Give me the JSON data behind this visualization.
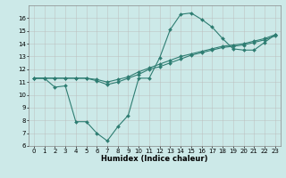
{
  "xlabel": "Humidex (Indice chaleur)",
  "background_color": "#cce9e8",
  "grid_color": "#bbbbbb",
  "line_color": "#2e7d72",
  "xlim": [
    -0.5,
    23.5
  ],
  "ylim": [
    6,
    17
  ],
  "xticks": [
    0,
    1,
    2,
    3,
    4,
    5,
    6,
    7,
    8,
    9,
    10,
    11,
    12,
    13,
    14,
    15,
    16,
    17,
    18,
    19,
    20,
    21,
    22,
    23
  ],
  "yticks": [
    6,
    7,
    8,
    9,
    10,
    11,
    12,
    13,
    14,
    15,
    16
  ],
  "line1_x": [
    0,
    1,
    2,
    3,
    4,
    5,
    6,
    7,
    8,
    9,
    10,
    11,
    12,
    13,
    14,
    15,
    16,
    17,
    18,
    19,
    20,
    21,
    22,
    23
  ],
  "line1_y": [
    11.3,
    11.3,
    10.6,
    10.7,
    7.9,
    7.9,
    7.0,
    6.4,
    7.5,
    8.4,
    11.3,
    11.3,
    12.9,
    15.1,
    16.3,
    16.4,
    15.9,
    15.3,
    14.4,
    13.6,
    13.5,
    13.5,
    14.1,
    14.7
  ],
  "line2_x": [
    0,
    1,
    2,
    3,
    4,
    5,
    6,
    7,
    8,
    9,
    10,
    11,
    12,
    13,
    14,
    15,
    16,
    17,
    18,
    19,
    20,
    21,
    22,
    23
  ],
  "line2_y": [
    11.3,
    11.3,
    11.3,
    11.3,
    11.3,
    11.3,
    11.1,
    10.8,
    11.0,
    11.3,
    11.6,
    12.0,
    12.2,
    12.5,
    12.8,
    13.1,
    13.3,
    13.5,
    13.7,
    13.8,
    13.9,
    14.1,
    14.3,
    14.6
  ],
  "line3_x": [
    0,
    1,
    2,
    3,
    4,
    5,
    6,
    7,
    8,
    9,
    10,
    11,
    12,
    13,
    14,
    15,
    16,
    17,
    18,
    19,
    20,
    21,
    22,
    23
  ],
  "line3_y": [
    11.3,
    11.3,
    11.3,
    11.3,
    11.3,
    11.3,
    11.2,
    11.0,
    11.2,
    11.4,
    11.8,
    12.1,
    12.4,
    12.7,
    13.0,
    13.2,
    13.4,
    13.6,
    13.8,
    13.9,
    14.0,
    14.2,
    14.4,
    14.7
  ],
  "tick_fontsize": 5.0,
  "xlabel_fontsize": 6.0,
  "marker_size": 2.0,
  "linewidth": 0.8
}
